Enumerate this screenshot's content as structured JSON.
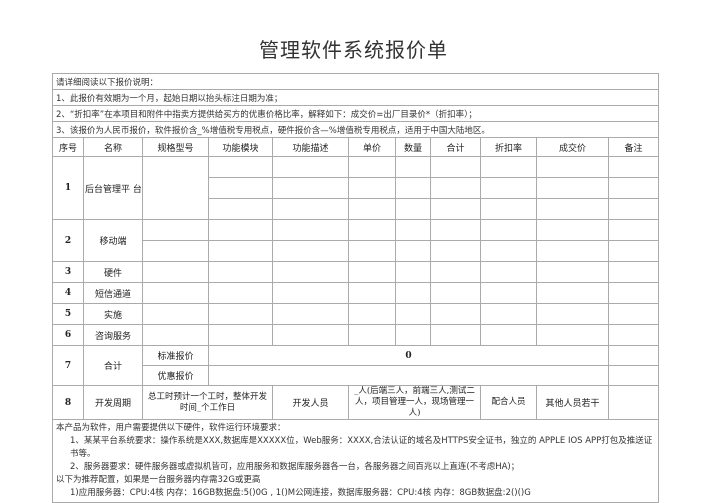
{
  "title": "管理软件系统报价单",
  "notes": [
    "请详细阅读以下报价说明：",
    "1、此报价有效期为一个月，起始日期以抬头标注日期为准；",
    "2、“折扣率”在本项目和附件中指卖方提供给买方的优惠价格比率，解释如下：成交价=出厂目录价*（折扣率）；",
    "3、该报价为人民币报价，软件报价含_%增值税专用税点，硬件报价含—%增值税专用税点，适用于中国大陆地区。"
  ],
  "headers": [
    "序号",
    "名称",
    "规格型号",
    "功能模块",
    "功能描述",
    "单价",
    "数量",
    "合计",
    "折扣率",
    "成交价",
    "备注"
  ],
  "items": [
    {
      "no": "1",
      "name": "后台管理平 台"
    },
    {
      "no": "2",
      "name": "移动端"
    },
    {
      "no": "3",
      "name": "硬件"
    },
    {
      "no": "4",
      "name": "短信通道"
    },
    {
      "no": "5",
      "name": "实施"
    },
    {
      "no": "6",
      "name": "咨询服务"
    }
  ],
  "total": {
    "no": "7",
    "name": "合计",
    "standard_label": "标准报价",
    "standard_value": "0",
    "discount_label": "优惠报价"
  },
  "period": {
    "no": "8",
    "name": "开发周期",
    "hours": "总工时预计一个工时，整体开发 时间_个工作日",
    "dev_label": "开发人员",
    "dev_value": "_人(后端三人，前端三人,测试二人，项目管理一人，现场管理一人)",
    "coop_label": "配合人员",
    "others": "其他人员若干"
  },
  "footer": [
    "本产品为软件，用户需要提供以下硬件，软件运行环境要求：",
    "1、某某平台系统要求：操作系统是XXX,数据库是XXXXX位，Web服务：XXXX,合法认证的域名及HTTPS安全证书，独立的 APPLE IOS APP打包及推送证书等。",
    "2、服务器要求：硬件服务器或虚拟机皆可，应用服务和数据库服务器各一台，各服务器之间百兆以上直连(不考虑HA)；",
    "以下为推荐配置，如果是一台服务器内存需32G或更高",
    "1)应用服务器：CPU:4核 内存：16GB数据盘:5()0G , 1()M公网连接，数据库服务器：CPU:4核 内存：8GB数据盘:2()()G"
  ]
}
